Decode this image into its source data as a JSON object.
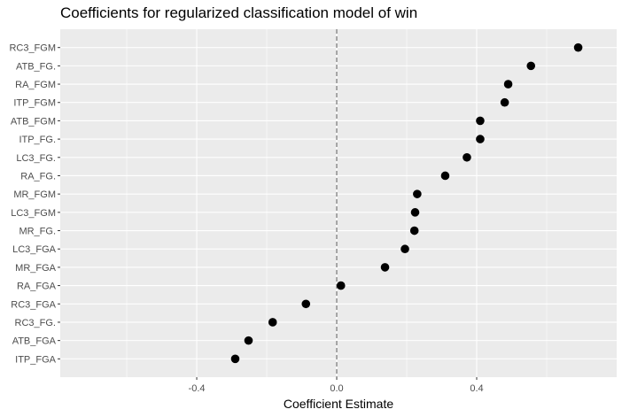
{
  "chart_data": {
    "type": "scatter",
    "title": "Coefficients for regularized classification model of win",
    "xlabel": "Coefficient Estimate",
    "ylabel": "",
    "xlim": [
      -0.79,
      0.8
    ],
    "xticks": [
      -0.4,
      0.0,
      0.4
    ],
    "xtick_labels": [
      "-0.4",
      "0.0",
      "0.4"
    ],
    "reference_line": 0.0,
    "colors": {
      "panel": "#ebebeb",
      "grid_major": "#ffffff",
      "point": "#000000",
      "reference_line": "#7f7f7f"
    },
    "categories": [
      "RC3_FGM",
      "ATB_FG.",
      "RA_FGM",
      "ITP_FGM",
      "ATB_FGM",
      "ITP_FG.",
      "LC3_FG.",
      "RA_FG.",
      "MR_FGM",
      "LC3_FGM",
      "MR_FG.",
      "LC3_FGA",
      "MR_FGA",
      "RA_FGA",
      "RC3_FGA",
      "RC3_FG.",
      "ATB_FGA",
      "ITP_FGA"
    ],
    "values": [
      0.69,
      0.555,
      0.49,
      0.48,
      0.41,
      0.41,
      0.372,
      0.31,
      0.23,
      0.224,
      0.222,
      0.195,
      0.138,
      0.012,
      -0.088,
      -0.183,
      -0.252,
      -0.29
    ]
  }
}
